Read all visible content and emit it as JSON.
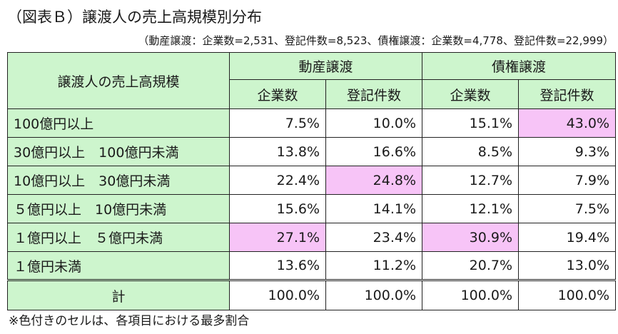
{
  "chart_data": {
    "type": "table",
    "title": "（図表Ｂ）譲渡人の売上高規模別分布",
    "subtitle": "（動産譲渡：企業数=2,531、登記件数=8,523、債権譲渡：企業数=4,778、登記件数=22,999）",
    "row_header": "譲渡人の売上高規模",
    "groups": [
      "動産譲渡",
      "債権譲渡"
    ],
    "columns": [
      "企業数",
      "登記件数",
      "企業数",
      "登記件数"
    ],
    "rows": [
      {
        "label": "100億円以上",
        "values": [
          "7.5%",
          "10.0%",
          "15.1%",
          "43.0%"
        ],
        "highlight": [
          false,
          false,
          false,
          true
        ]
      },
      {
        "label": "30億円以上　100億円未満",
        "values": [
          "13.8%",
          "16.6%",
          "8.5%",
          "9.3%"
        ],
        "highlight": [
          false,
          false,
          false,
          false
        ]
      },
      {
        "label": "10億円以上　30億円未満",
        "values": [
          "22.4%",
          "24.8%",
          "12.7%",
          "7.9%"
        ],
        "highlight": [
          false,
          true,
          false,
          false
        ]
      },
      {
        "label": "５億円以上　10億円未満",
        "values": [
          "15.6%",
          "14.1%",
          "12.1%",
          "7.5%"
        ],
        "highlight": [
          false,
          false,
          false,
          false
        ]
      },
      {
        "label": "１億円以上　５億円未満",
        "values": [
          "27.1%",
          "23.4%",
          "30.9%",
          "19.4%"
        ],
        "highlight": [
          true,
          false,
          true,
          false
        ]
      },
      {
        "label": "１億円未満",
        "values": [
          "13.6%",
          "11.2%",
          "20.7%",
          "13.0%"
        ],
        "highlight": [
          false,
          false,
          false,
          false
        ]
      }
    ],
    "total": {
      "label": "計",
      "values": [
        "100.0%",
        "100.0%",
        "100.0%",
        "100.0%"
      ]
    },
    "note": "※色付きのセルは、各項目における最多割合"
  },
  "colors": {
    "header_bg": "#cdf5cd",
    "highlight_bg": "#f7c4f7",
    "cell_bg": "#ffffff",
    "border": "#222222"
  }
}
